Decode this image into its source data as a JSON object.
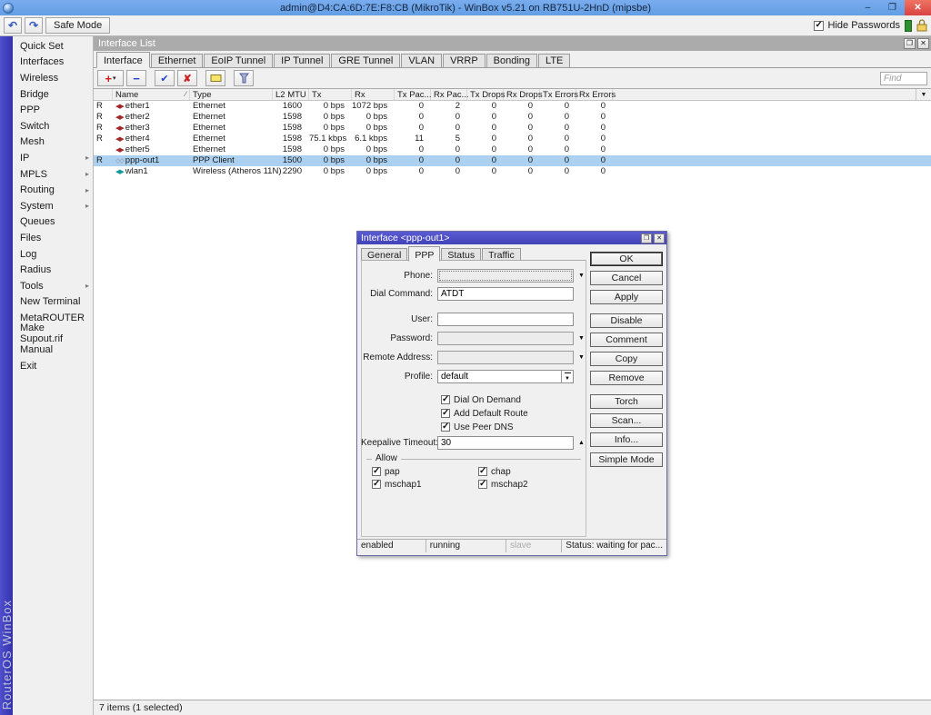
{
  "window": {
    "title": "admin@D4:CA:6D:7E:F8:CB (MikroTik) - WinBox v5.21 on RB751U-2HnD (mipsbe)"
  },
  "toolbar": {
    "safe_mode_label": "Safe Mode",
    "hide_passwords_label": "Hide Passwords",
    "hide_passwords_checked": true
  },
  "brand_text": "RouterOS WinBox",
  "sidebar": {
    "items": [
      {
        "label": "Quick Set",
        "has_submenu": false
      },
      {
        "label": "Interfaces",
        "has_submenu": false
      },
      {
        "label": "Wireless",
        "has_submenu": false
      },
      {
        "label": "Bridge",
        "has_submenu": false
      },
      {
        "label": "PPP",
        "has_submenu": false
      },
      {
        "label": "Switch",
        "has_submenu": false
      },
      {
        "label": "Mesh",
        "has_submenu": false
      },
      {
        "label": "IP",
        "has_submenu": true
      },
      {
        "label": "MPLS",
        "has_submenu": true
      },
      {
        "label": "Routing",
        "has_submenu": true
      },
      {
        "label": "System",
        "has_submenu": true
      },
      {
        "label": "Queues",
        "has_submenu": false
      },
      {
        "label": "Files",
        "has_submenu": false
      },
      {
        "label": "Log",
        "has_submenu": false
      },
      {
        "label": "Radius",
        "has_submenu": false
      },
      {
        "label": "Tools",
        "has_submenu": true
      },
      {
        "label": "New Terminal",
        "has_submenu": false
      },
      {
        "label": "MetaROUTER",
        "has_submenu": false
      },
      {
        "label": "Make Supout.rif",
        "has_submenu": false
      },
      {
        "label": "Manual",
        "has_submenu": false
      },
      {
        "label": "Exit",
        "has_submenu": false
      }
    ]
  },
  "interface_list": {
    "title": "Interface List",
    "tabs": [
      "Interface",
      "Ethernet",
      "EoIP Tunnel",
      "IP Tunnel",
      "GRE Tunnel",
      "VLAN",
      "VRRP",
      "Bonding",
      "LTE"
    ],
    "active_tab": 0,
    "find_placeholder": "Find",
    "icon_glyphs": {
      "ethernet": "◀▶",
      "ppp": "◇◇",
      "wireless": "◀▶"
    },
    "columns": [
      {
        "label": ""
      },
      {
        "label": "Name",
        "sort": "asc"
      },
      {
        "label": "Type"
      },
      {
        "label": "L2 MTU"
      },
      {
        "label": "Tx"
      },
      {
        "label": "Rx"
      },
      {
        "label": "Tx Pac..."
      },
      {
        "label": "Rx Pac..."
      },
      {
        "label": "Tx Drops"
      },
      {
        "label": "Rx Drops"
      },
      {
        "label": "Tx Errors"
      },
      {
        "label": "Rx Errors"
      }
    ],
    "rows": [
      {
        "flag": "R",
        "icon": "ethernet",
        "selected": false,
        "cells": [
          "ether1",
          "Ethernet",
          "1600",
          "0 bps",
          "1072 bps",
          "0",
          "2",
          "0",
          "0",
          "0",
          "0"
        ]
      },
      {
        "flag": "R",
        "icon": "ethernet",
        "selected": false,
        "cells": [
          "ether2",
          "Ethernet",
          "1598",
          "0 bps",
          "0 bps",
          "0",
          "0",
          "0",
          "0",
          "0",
          "0"
        ]
      },
      {
        "flag": "R",
        "icon": "ethernet",
        "selected": false,
        "cells": [
          "ether3",
          "Ethernet",
          "1598",
          "0 bps",
          "0 bps",
          "0",
          "0",
          "0",
          "0",
          "0",
          "0"
        ]
      },
      {
        "flag": "R",
        "icon": "ethernet",
        "selected": false,
        "cells": [
          "ether4",
          "Ethernet",
          "1598",
          "75.1 kbps",
          "6.1 kbps",
          "11",
          "5",
          "0",
          "0",
          "0",
          "0"
        ]
      },
      {
        "flag": "",
        "icon": "ethernet",
        "selected": false,
        "cells": [
          "ether5",
          "Ethernet",
          "1598",
          "0 bps",
          "0 bps",
          "0",
          "0",
          "0",
          "0",
          "0",
          "0"
        ]
      },
      {
        "flag": "R",
        "icon": "ppp",
        "selected": true,
        "cells": [
          "ppp-out1",
          "PPP Client",
          "1500",
          "0 bps",
          "0 bps",
          "0",
          "0",
          "0",
          "0",
          "0",
          "0"
        ]
      },
      {
        "flag": "",
        "icon": "wireless",
        "selected": false,
        "cells": [
          "wlan1",
          "Wireless (Atheros 11N)",
          "2290",
          "0 bps",
          "0 bps",
          "0",
          "0",
          "0",
          "0",
          "0",
          "0"
        ]
      }
    ],
    "status_text": "7 items (1 selected)"
  },
  "dialog": {
    "title": "Interface <ppp-out1>",
    "tabs": [
      "General",
      "PPP",
      "Status",
      "Traffic"
    ],
    "active_tab": 1,
    "fields": {
      "phone": {
        "label": "Phone:",
        "value": ""
      },
      "dial_command": {
        "label": "Dial Command:",
        "value": "ATDT"
      },
      "user": {
        "label": "User:",
        "value": ""
      },
      "password": {
        "label": "Password:",
        "value": ""
      },
      "remote_address": {
        "label": "Remote Address:",
        "value": ""
      },
      "profile": {
        "label": "Profile:",
        "value": "default"
      },
      "keepalive": {
        "label": "Keepalive Timeout:",
        "value": "30"
      }
    },
    "checkboxes": [
      {
        "label": "Dial On Demand",
        "checked": true
      },
      {
        "label": "Add Default Route",
        "checked": true
      },
      {
        "label": "Use Peer DNS",
        "checked": true
      }
    ],
    "allow": {
      "label": "Allow",
      "options": [
        {
          "label": "pap",
          "checked": true
        },
        {
          "label": "chap",
          "checked": true
        },
        {
          "label": "mschap1",
          "checked": true
        },
        {
          "label": "mschap2",
          "checked": true
        }
      ]
    },
    "buttons": [
      "OK",
      "Cancel",
      "Apply",
      "Disable",
      "Comment",
      "Copy",
      "Remove",
      "Torch",
      "Scan...",
      "Info...",
      "Simple Mode"
    ],
    "statusbar": [
      {
        "text": "enabled",
        "muted": false
      },
      {
        "text": "running",
        "muted": false
      },
      {
        "text": "slave",
        "muted": true
      },
      {
        "text": "Status: waiting for pac...",
        "muted": false
      }
    ]
  }
}
